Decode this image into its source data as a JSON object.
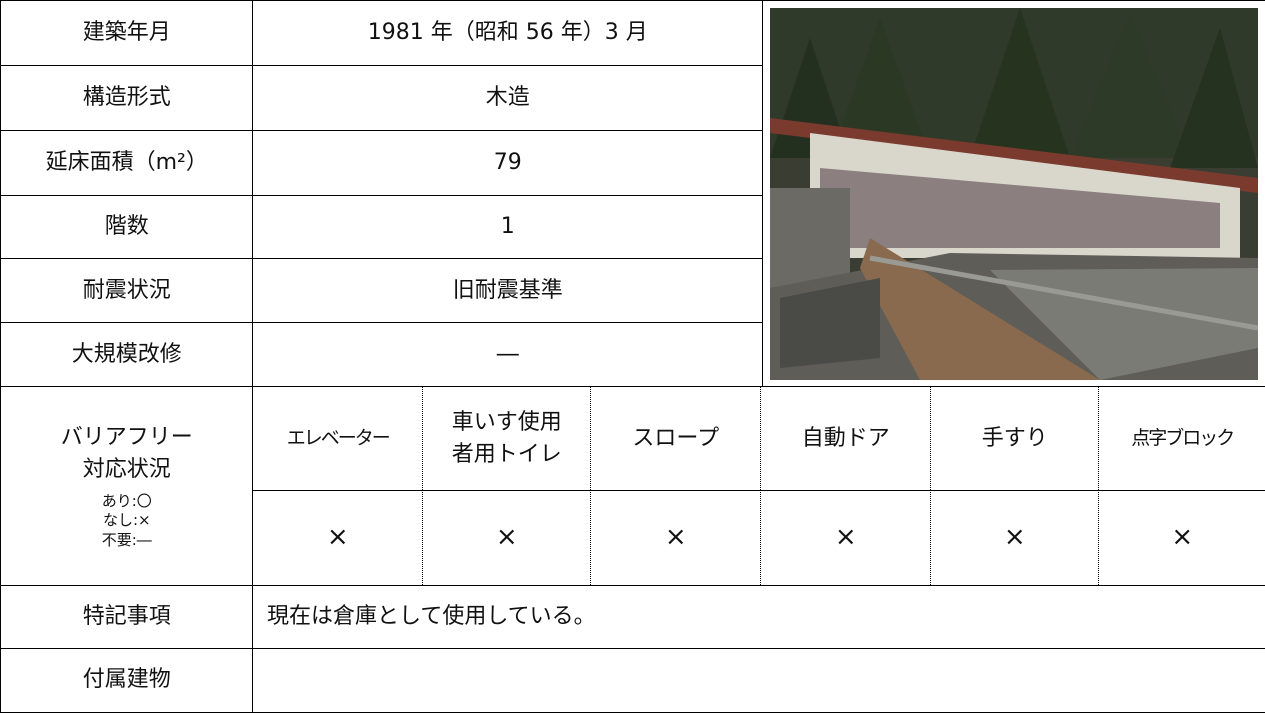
{
  "table": {
    "rows": [
      {
        "label": "建築年月",
        "value": "1981 年（昭和 56 年）3 月"
      },
      {
        "label": "構造形式",
        "value": "木造"
      },
      {
        "label": "延床面積（m²）",
        "value": "79"
      },
      {
        "label": "階数",
        "value": "1"
      },
      {
        "label": "耐震状況",
        "value": "旧耐震基準"
      },
      {
        "label": "大規模改修",
        "value": "―"
      }
    ],
    "barrier_free": {
      "label": [
        "バリアフリー",
        "対応状況"
      ],
      "legend": [
        "あり:〇",
        "なし:×",
        "不要:―"
      ],
      "items": [
        {
          "name": [
            "エレベーター"
          ],
          "status": "×"
        },
        {
          "name": [
            "車いす使用",
            "者用トイレ"
          ],
          "status": "×"
        },
        {
          "name": [
            "スロープ"
          ],
          "status": "×"
        },
        {
          "name": [
            "自動ドア"
          ],
          "status": "×"
        },
        {
          "name": [
            "手すり"
          ],
          "status": "×"
        },
        {
          "name": [
            "点字ブロック"
          ],
          "status": "×"
        }
      ]
    },
    "notes": {
      "label": "特記事項",
      "value": "現在は倉庫として使用している。"
    },
    "annex": {
      "label": "付属建物"
    }
  }
}
